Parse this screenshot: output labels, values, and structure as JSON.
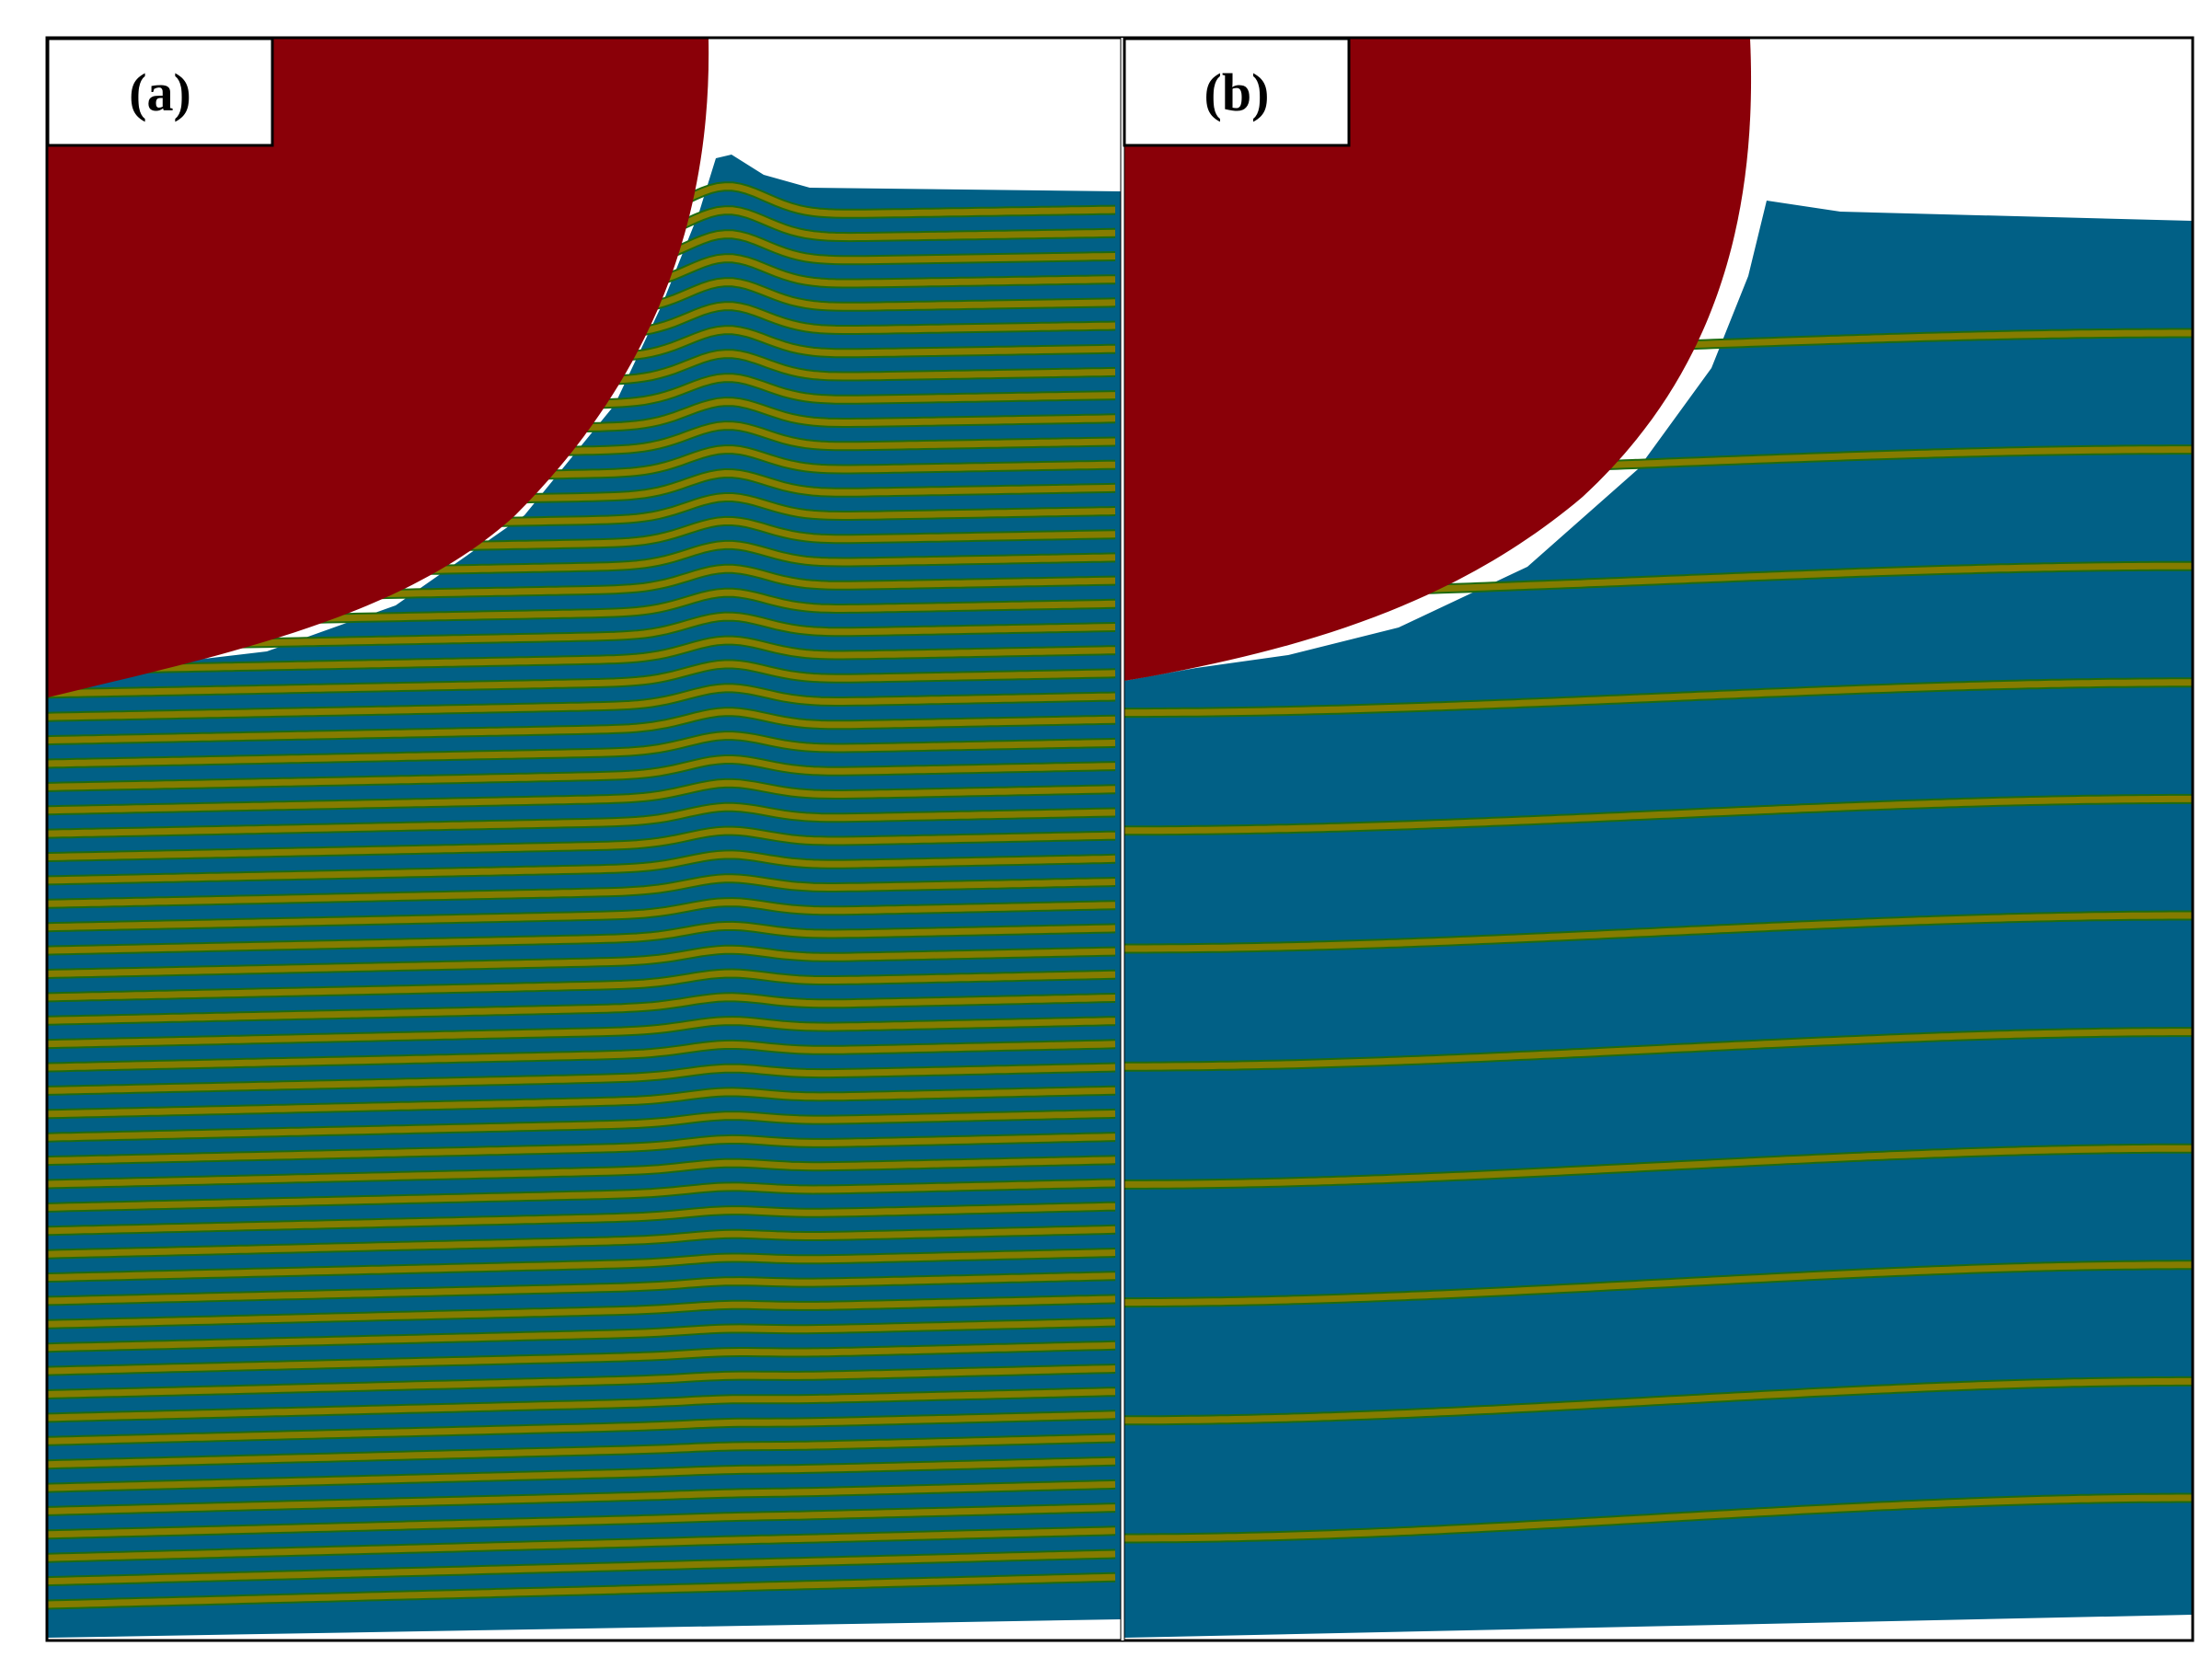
{
  "panels": [
    {
      "id": "a",
      "label": "(a)",
      "layer_count": 60,
      "colors": {
        "indenter": "#8a0008",
        "matrix": "#016086",
        "layer": "#857c00",
        "layer_edge": "#1f6b10",
        "background": "#ffffff"
      }
    },
    {
      "id": "b",
      "label": "(b)",
      "layer_count": 11,
      "colors": {
        "indenter": "#8a0008",
        "matrix": "#016086",
        "layer": "#857c00",
        "layer_edge": "#1f6b10",
        "background": "#ffffff"
      }
    }
  ]
}
